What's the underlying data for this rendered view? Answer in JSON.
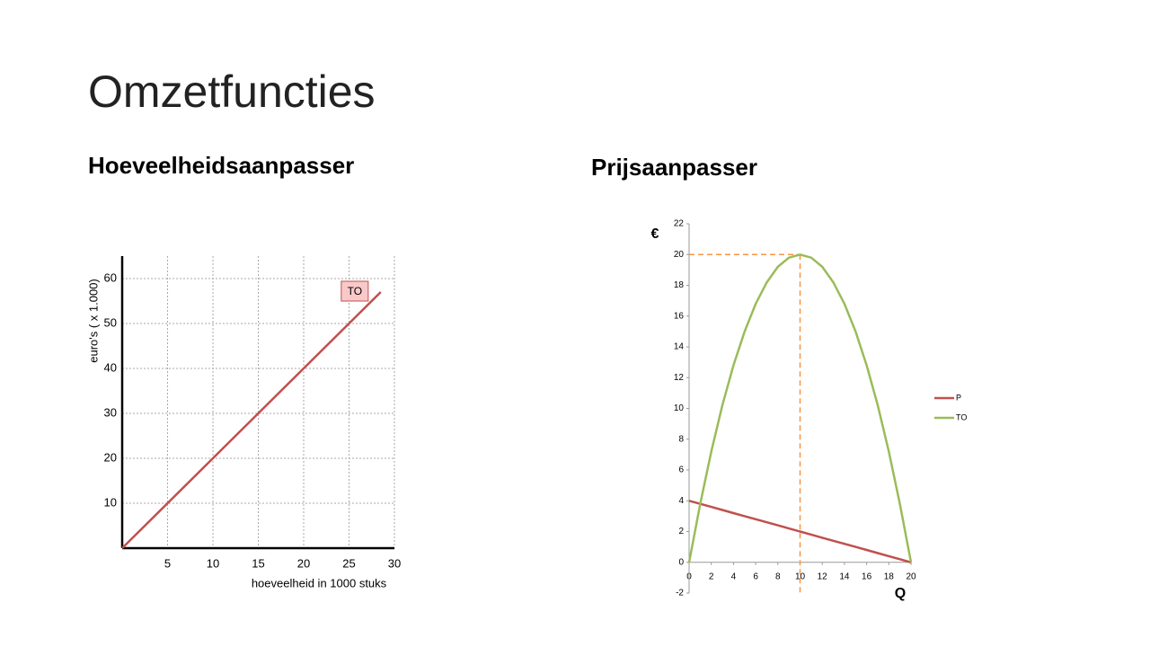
{
  "title": "Omzetfuncties",
  "chart_data": [
    {
      "type": "line",
      "title": "Hoeveelheidsaanpasser",
      "xlabel": "hoeveelheid in 1000 stuks",
      "ylabel": "euro's ( x 1.000)",
      "x": [
        0,
        28.5
      ],
      "series": [
        {
          "name": "TO",
          "color": "#c0504d",
          "values": [
            0,
            57
          ]
        }
      ],
      "xlim": [
        0,
        30
      ],
      "ylim": [
        0,
        65
      ],
      "xticks": [
        5,
        10,
        15,
        20,
        25,
        30
      ],
      "yticks": [
        10,
        20,
        30,
        40,
        50,
        60
      ],
      "grid": true,
      "legend": "end-of-line"
    },
    {
      "type": "line",
      "title": "Prijsaanpasser",
      "xlabel": "Q",
      "ylabel": "€",
      "x": [
        0,
        1,
        2,
        3,
        4,
        5,
        6,
        7,
        8,
        9,
        10,
        11,
        12,
        13,
        14,
        15,
        16,
        17,
        18,
        19,
        20
      ],
      "series": [
        {
          "name": "P",
          "color": "#c0504d",
          "values": [
            4,
            3.8,
            3.6,
            3.4,
            3.2,
            3,
            2.8,
            2.6,
            2.4,
            2.2,
            2,
            1.8,
            1.6,
            1.4,
            1.2,
            1,
            0.8,
            0.6,
            0.4,
            0.2,
            0
          ]
        },
        {
          "name": "TO",
          "color": "#9bbb59",
          "values": [
            0,
            3.8,
            7.2,
            10.2,
            12.8,
            15,
            16.8,
            18.2,
            19.2,
            19.8,
            20,
            19.8,
            19.2,
            18.2,
            16.8,
            15,
            12.8,
            10.2,
            7.2,
            3.8,
            0
          ]
        }
      ],
      "xlim": [
        0,
        20
      ],
      "ylim": [
        -2,
        22
      ],
      "xticks": [
        0,
        2,
        4,
        6,
        8,
        10,
        12,
        14,
        16,
        18,
        20
      ],
      "yticks": [
        -2,
        0,
        2,
        4,
        6,
        8,
        10,
        12,
        14,
        16,
        18,
        20,
        22
      ],
      "grid": false,
      "legend": "right",
      "guides": {
        "x": 10,
        "y": 20,
        "color": "#f79646"
      }
    }
  ]
}
